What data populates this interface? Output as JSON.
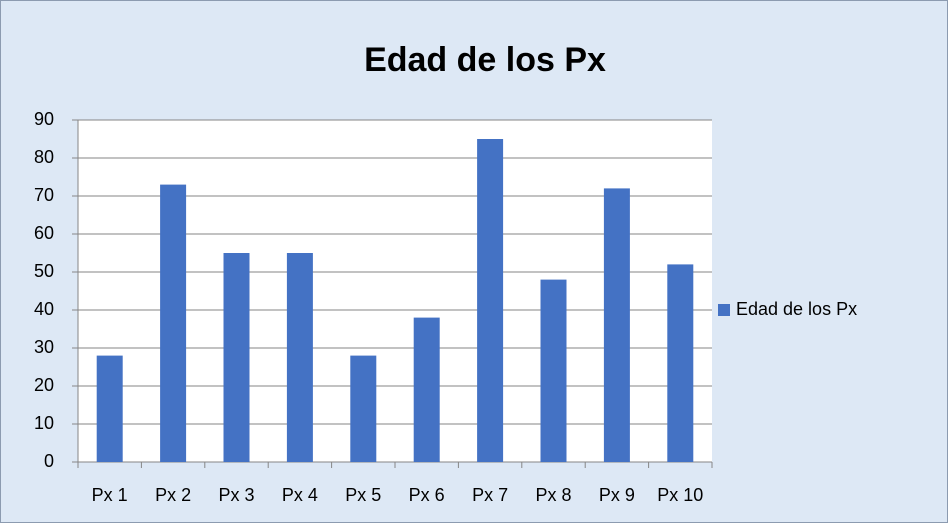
{
  "chart_data": {
    "type": "bar",
    "title": "Edad de los Px",
    "categories": [
      "Px 1",
      "Px 2",
      "Px 3",
      "Px 4",
      "Px 5",
      "Px 6",
      "Px 7",
      "Px 8",
      "Px 9",
      "Px 10"
    ],
    "series": [
      {
        "name": "Edad de los Px",
        "color": "#4472c4",
        "values": [
          28,
          73,
          55,
          55,
          28,
          38,
          85,
          48,
          72,
          52
        ]
      }
    ],
    "ylim": [
      0,
      90
    ],
    "yticks": [
      0,
      10,
      20,
      30,
      40,
      50,
      60,
      70,
      80,
      90
    ],
    "grid": true,
    "legend": "right"
  }
}
